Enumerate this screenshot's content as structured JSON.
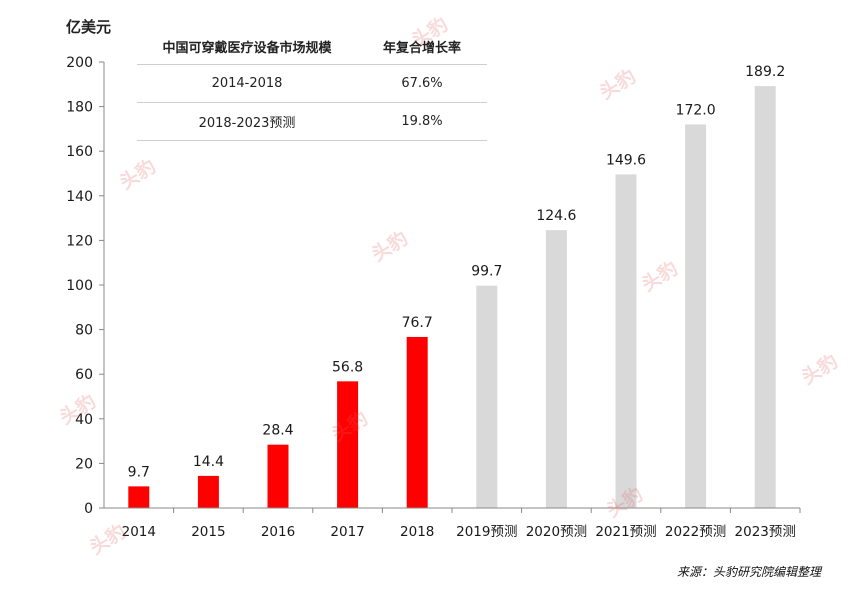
{
  "unit_label": "亿美元",
  "source_note": "来源：头豹研究院编辑整理",
  "cagr_table": {
    "headers": [
      "中国可穿戴医疗设备市场规模",
      "年复合增长率"
    ],
    "rows": [
      [
        "2014-2018",
        "67.6%"
      ],
      [
        "2018-2023预测",
        "19.8%"
      ]
    ]
  },
  "watermark_text": "头豹",
  "colors": {
    "actual": "#ff0000",
    "forecast": "#d9d9d9",
    "axis": "#888888",
    "text": "#1a1a1a"
  },
  "chart_data": {
    "type": "bar",
    "title": "",
    "xlabel": "",
    "ylabel": "亿美元",
    "ylim": [
      0,
      200
    ],
    "yticks": [
      0,
      20,
      40,
      60,
      80,
      100,
      120,
      140,
      160,
      180,
      200
    ],
    "grid": false,
    "categories": [
      "2014",
      "2015",
      "2016",
      "2017",
      "2018",
      "2019预测",
      "2020预测",
      "2021预测",
      "2022预测",
      "2023预测"
    ],
    "values": [
      9.7,
      14.4,
      28.4,
      56.8,
      76.7,
      99.7,
      124.6,
      149.6,
      172.0,
      189.2
    ],
    "value_labels": [
      "9.7",
      "14.4",
      "28.4",
      "56.8",
      "76.7",
      "99.7",
      "124.6",
      "149.6",
      "172.0",
      "189.2"
    ],
    "bar_kind": [
      "actual",
      "actual",
      "actual",
      "actual",
      "actual",
      "forecast",
      "forecast",
      "forecast",
      "forecast",
      "forecast"
    ]
  }
}
